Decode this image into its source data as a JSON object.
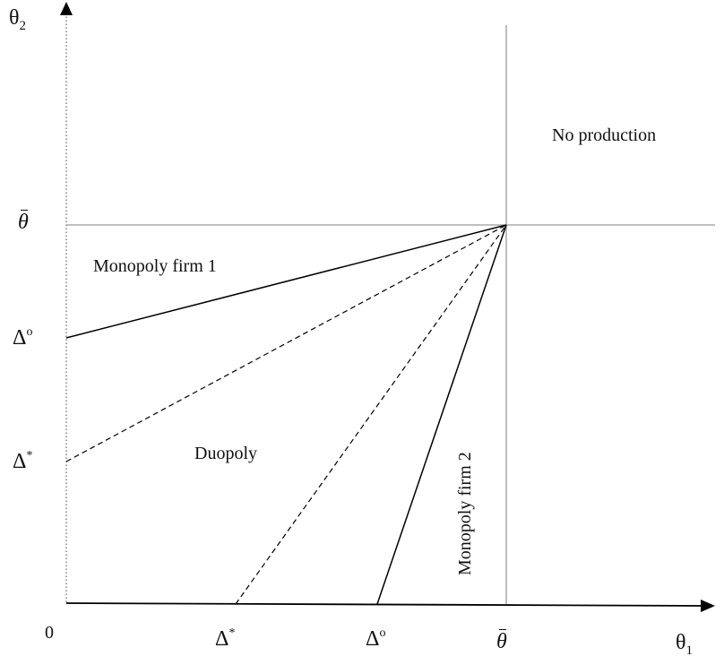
{
  "axes": {
    "y_label": {
      "base": "θ",
      "sub": "2"
    },
    "x_label": {
      "base": "θ",
      "sub": "1"
    },
    "origin": "0"
  },
  "ticks": {
    "theta_bar": "θ",
    "delta_o": {
      "base": "Δ",
      "sup": "o"
    },
    "delta_star": {
      "base": "Δ",
      "sup": "*"
    }
  },
  "regions": {
    "no_production": "No production",
    "monopoly_firm_1": "Monopoly firm 1",
    "duopoly": "Duopoly",
    "monopoly_firm_2": "Monopoly firm 2"
  },
  "colors": {
    "line": "#000000",
    "boundary": "#9a9a9a",
    "dotted_axis": "#6e6e6e"
  }
}
